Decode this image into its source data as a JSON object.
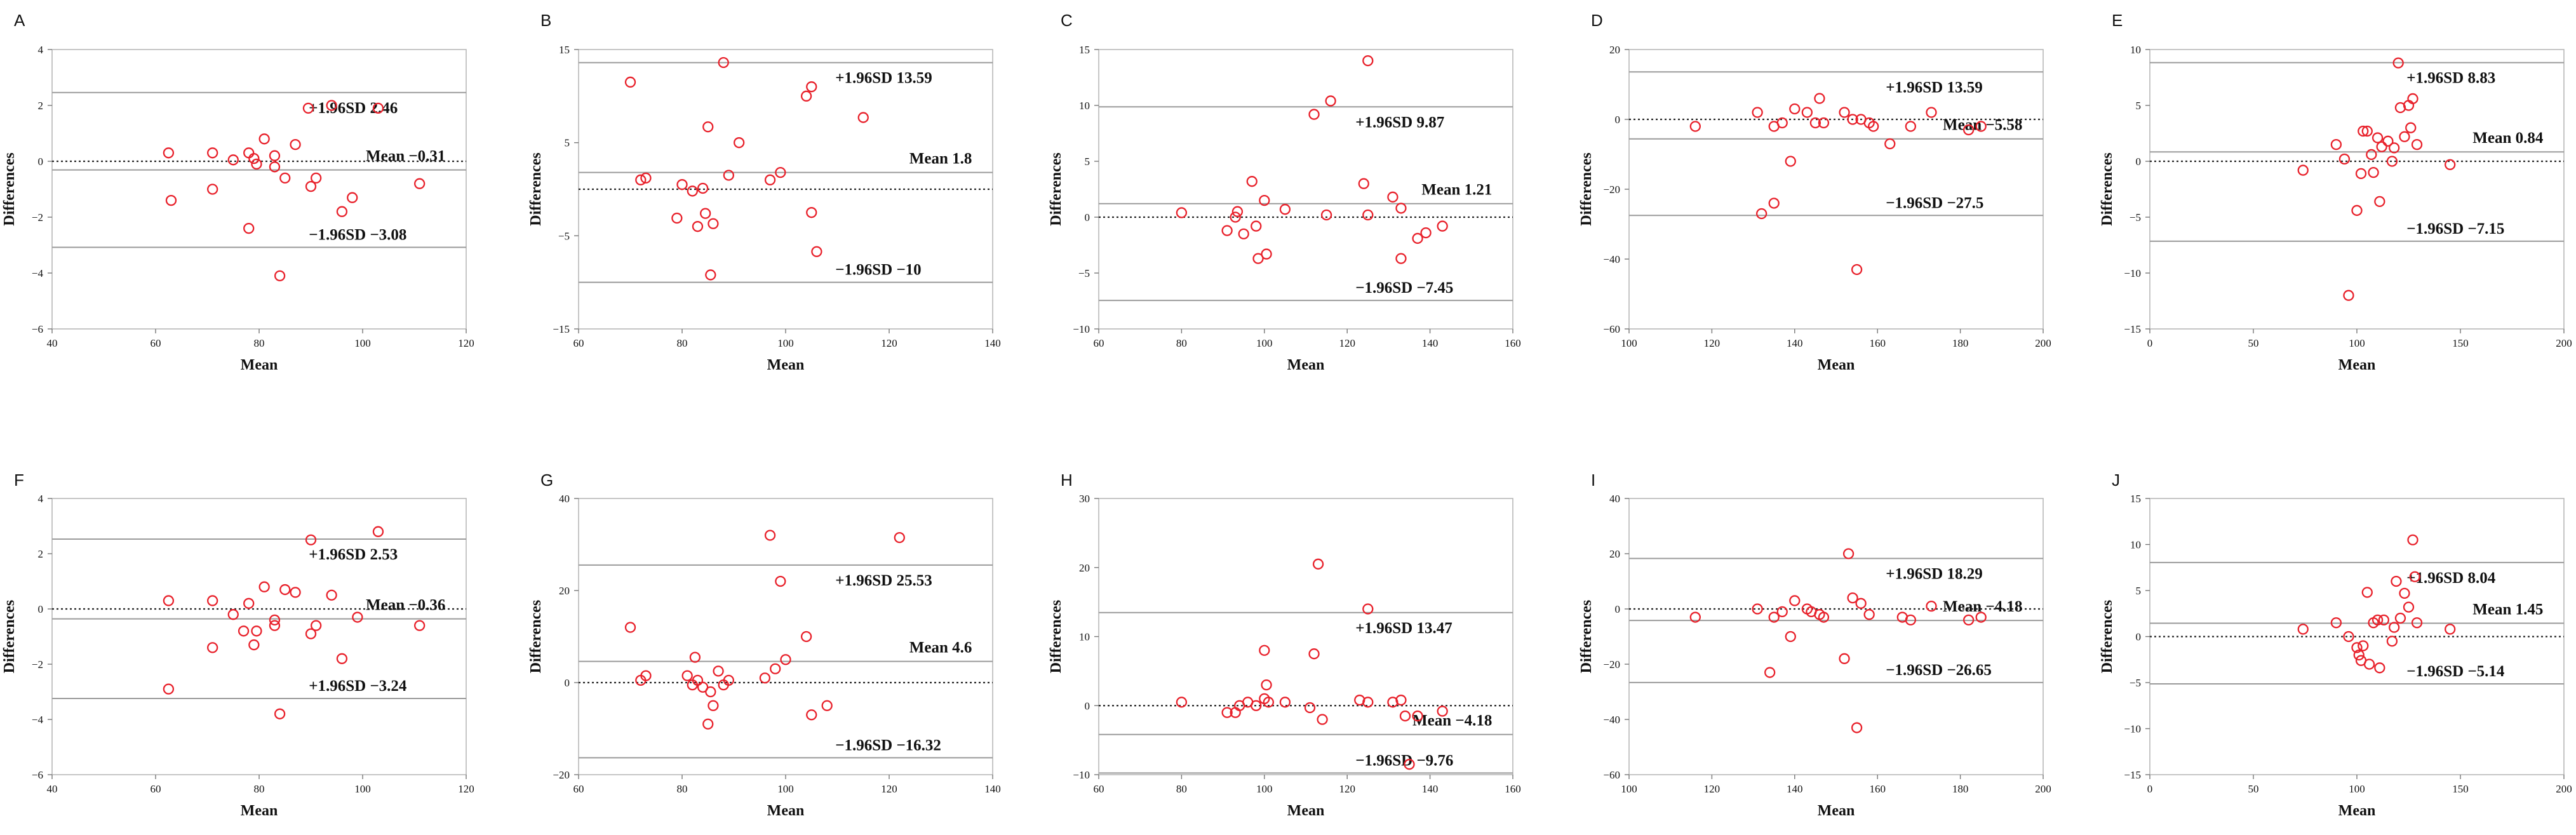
{
  "chart_data": [
    {
      "panel": "A",
      "type": "scatter",
      "xlabel": "Mean",
      "ylabel": "Differences",
      "xlim": [
        40,
        120
      ],
      "ylim": [
        -6,
        4
      ],
      "xticks": [
        40,
        60,
        80,
        100,
        120
      ],
      "yticks": [
        -6,
        -4,
        -2,
        0,
        2,
        4
      ],
      "upper_label": "+1.96SD 2.46",
      "upper": 2.46,
      "mean_label": "Mean -0.31",
      "mean": -0.31,
      "lower_label": "-1.96SD -3.08",
      "lower": -3.08,
      "points": [
        [
          62.5,
          0.3
        ],
        [
          63,
          -1.4
        ],
        [
          71,
          0.3
        ],
        [
          71,
          -1.0
        ],
        [
          75,
          0.05
        ],
        [
          78,
          0.3
        ],
        [
          78,
          -2.4
        ],
        [
          79,
          0.1
        ],
        [
          79.5,
          -0.1
        ],
        [
          81,
          0.8
        ],
        [
          83,
          0.2
        ],
        [
          83,
          -0.2
        ],
        [
          84,
          -4.1
        ],
        [
          85,
          -0.6
        ],
        [
          87,
          0.6
        ],
        [
          89.5,
          1.9
        ],
        [
          90,
          -0.9
        ],
        [
          91,
          -0.6
        ],
        [
          94,
          2.0
        ],
        [
          96,
          -1.8
        ],
        [
          98,
          -1.3
        ],
        [
          103,
          1.9
        ],
        [
          111,
          -0.8
        ]
      ]
    },
    {
      "panel": "B",
      "type": "scatter",
      "xlabel": "Mean",
      "ylabel": "Differences",
      "xlim": [
        60,
        140
      ],
      "ylim": [
        -15,
        15
      ],
      "xticks": [
        60,
        80,
        100,
        120,
        140
      ],
      "yticks": [
        -15,
        -5,
        5,
        15
      ],
      "upper_label": "+1.96SD 13.59",
      "upper": 13.59,
      "mean_label": "Mean 1.8",
      "mean": 1.8,
      "lower_label": "-1.96SD -10",
      "lower": -10,
      "points": [
        [
          70,
          11.5
        ],
        [
          72,
          1.0
        ],
        [
          73,
          1.2
        ],
        [
          79,
          -3.1
        ],
        [
          80,
          0.5
        ],
        [
          82,
          -0.2
        ],
        [
          83,
          -4.0
        ],
        [
          84,
          0.1
        ],
        [
          84.5,
          -2.6
        ],
        [
          85,
          6.7
        ],
        [
          85.5,
          -9.2
        ],
        [
          86,
          -3.7
        ],
        [
          88,
          13.6
        ],
        [
          89,
          1.5
        ],
        [
          91,
          5.0
        ],
        [
          97,
          1.0
        ],
        [
          99,
          1.8
        ],
        [
          104,
          10.0
        ],
        [
          105,
          11.0
        ],
        [
          105,
          -2.5
        ],
        [
          106,
          -6.7
        ],
        [
          115,
          7.7
        ]
      ]
    },
    {
      "panel": "C",
      "type": "scatter",
      "xlabel": "Mean",
      "ylabel": "Differences",
      "xlim": [
        60,
        160
      ],
      "ylim": [
        -10,
        15
      ],
      "xticks": [
        60,
        80,
        100,
        120,
        140,
        160
      ],
      "yticks": [
        -10,
        -5,
        0,
        5,
        10,
        15
      ],
      "upper_label": "+1.96SD 9.87",
      "upper": 9.87,
      "mean_label": "Mean 1.21",
      "mean": 1.21,
      "lower_label": "-1.96SD -7.45",
      "lower": -7.45,
      "points": [
        [
          80,
          0.4
        ],
        [
          91,
          -1.2
        ],
        [
          93,
          0.0
        ],
        [
          93.5,
          0.5
        ],
        [
          95,
          -1.5
        ],
        [
          97,
          3.2
        ],
        [
          98,
          -0.8
        ],
        [
          98.5,
          -3.7
        ],
        [
          100,
          1.5
        ],
        [
          100.5,
          -3.3
        ],
        [
          105,
          0.7
        ],
        [
          112,
          9.2
        ],
        [
          115,
          0.2
        ],
        [
          116,
          10.4
        ],
        [
          124,
          3.0
        ],
        [
          125,
          0.2
        ],
        [
          125,
          14.0
        ],
        [
          131,
          1.8
        ],
        [
          133,
          0.8
        ],
        [
          133,
          -3.7
        ],
        [
          137,
          -1.9
        ],
        [
          139,
          -1.4
        ],
        [
          143,
          -0.8
        ]
      ]
    },
    {
      "panel": "D",
      "type": "scatter",
      "xlabel": "Mean",
      "ylabel": "Differences",
      "xlim": [
        100,
        200
      ],
      "ylim": [
        -60,
        20
      ],
      "xticks": [
        100,
        120,
        140,
        160,
        180,
        200
      ],
      "yticks": [
        -60,
        -40,
        -20,
        0,
        20
      ],
      "upper_label": "+1.96SD 13.59",
      "upper": 13.59,
      "mean_label": "Mean -5.58",
      "mean": -5.58,
      "lower_label": "-1.96SD -27.5",
      "lower": -27.5,
      "points": [
        [
          116,
          -2.0
        ],
        [
          131,
          2.0
        ],
        [
          132,
          -27.0
        ],
        [
          135,
          -24.0
        ],
        [
          135,
          -2.0
        ],
        [
          137,
          -1.0
        ],
        [
          139,
          -12.0
        ],
        [
          140,
          3.0
        ],
        [
          143,
          2.0
        ],
        [
          145,
          -1.0
        ],
        [
          146,
          6.0
        ],
        [
          147,
          -1.0
        ],
        [
          152,
          2.0
        ],
        [
          154,
          0.0
        ],
        [
          155,
          -43.0
        ],
        [
          156,
          0.0
        ],
        [
          158,
          -1.0
        ],
        [
          159,
          -2.0
        ],
        [
          163,
          -7.0
        ],
        [
          168,
          -2.0
        ],
        [
          173,
          2.0
        ],
        [
          182,
          -3.0
        ],
        [
          185,
          -2.0
        ]
      ]
    },
    {
      "panel": "E",
      "type": "scatter",
      "xlabel": "Mean",
      "ylabel": "Differences",
      "xlim": [
        0,
        200
      ],
      "ylim": [
        -15,
        10
      ],
      "xticks": [
        0,
        50,
        100,
        150,
        200
      ],
      "yticks": [
        -15,
        -10,
        -5,
        0,
        5,
        10
      ],
      "upper_label": "+1.96SD 8.83",
      "upper": 8.83,
      "mean_label": "Mean 0.84",
      "mean": 0.84,
      "lower_label": "-1.96SD -7.15",
      "lower": -7.15,
      "points": [
        [
          74,
          -0.8
        ],
        [
          90,
          1.5
        ],
        [
          94,
          0.2
        ],
        [
          96,
          -12.0
        ],
        [
          100,
          -4.4
        ],
        [
          102,
          -1.1
        ],
        [
          103,
          2.7
        ],
        [
          105,
          2.7
        ],
        [
          107,
          0.6
        ],
        [
          108,
          -1.0
        ],
        [
          110,
          2.1
        ],
        [
          111,
          -3.6
        ],
        [
          112,
          1.3
        ],
        [
          115,
          1.8
        ],
        [
          117,
          0.0
        ],
        [
          118,
          1.2
        ],
        [
          120,
          8.8
        ],
        [
          121,
          4.8
        ],
        [
          123,
          2.2
        ],
        [
          125,
          5.0
        ],
        [
          126,
          3.0
        ],
        [
          127,
          5.6
        ],
        [
          129,
          1.5
        ],
        [
          145,
          -0.3
        ]
      ]
    },
    {
      "panel": "F",
      "type": "scatter",
      "xlabel": "Mean",
      "ylabel": "Differences",
      "xlim": [
        40,
        120
      ],
      "ylim": [
        -6,
        4
      ],
      "xticks": [
        40,
        60,
        80,
        100,
        120
      ],
      "yticks": [
        -6,
        -4,
        -2,
        0,
        2,
        4
      ],
      "upper_label": "+1.96SD 2.53",
      "upper": 2.53,
      "mean_label": "Mean -0.36",
      "mean": -0.36,
      "lower_label": "+1.96SD -3.24",
      "lower": -3.24,
      "points": [
        [
          62.5,
          0.3
        ],
        [
          62.5,
          -2.9
        ],
        [
          71,
          0.3
        ],
        [
          71,
          -1.4
        ],
        [
          75,
          -0.2
        ],
        [
          77,
          -0.8
        ],
        [
          78,
          0.2
        ],
        [
          79,
          -1.3
        ],
        [
          79.5,
          -0.8
        ],
        [
          81,
          0.8
        ],
        [
          83,
          -0.4
        ],
        [
          83,
          -0.6
        ],
        [
          84,
          -3.8
        ],
        [
          85,
          0.7
        ],
        [
          87,
          0.6
        ],
        [
          90,
          2.5
        ],
        [
          90,
          -0.9
        ],
        [
          91,
          -0.6
        ],
        [
          94,
          0.5
        ],
        [
          96,
          -1.8
        ],
        [
          99,
          -0.3
        ],
        [
          103,
          2.8
        ],
        [
          111,
          -0.6
        ]
      ]
    },
    {
      "panel": "G",
      "type": "scatter",
      "xlabel": "Mean",
      "ylabel": "Differences",
      "xlim": [
        60,
        140
      ],
      "ylim": [
        -20,
        40
      ],
      "xticks": [
        60,
        80,
        100,
        120,
        140
      ],
      "yticks": [
        -20,
        0,
        20,
        40
      ],
      "upper_label": "+1.96SD 25.53",
      "upper": 25.53,
      "mean_label": "Mean 4.6",
      "mean": 4.6,
      "lower_label": "-1.96SD -16.32",
      "lower": -16.32,
      "points": [
        [
          70,
          12.0
        ],
        [
          72,
          0.5
        ],
        [
          73,
          1.5
        ],
        [
          81,
          1.5
        ],
        [
          82,
          -0.5
        ],
        [
          82.5,
          5.5
        ],
        [
          83,
          0.5
        ],
        [
          84,
          -1.0
        ],
        [
          85,
          -9.0
        ],
        [
          85.5,
          -2.0
        ],
        [
          86,
          -5.0
        ],
        [
          87,
          2.5
        ],
        [
          88,
          -0.5
        ],
        [
          89,
          0.5
        ],
        [
          96,
          1.0
        ],
        [
          97,
          32.0
        ],
        [
          98,
          3.0
        ],
        [
          99,
          22.0
        ],
        [
          100,
          5.0
        ],
        [
          104,
          10.0
        ],
        [
          105,
          -7.0
        ],
        [
          108,
          -5.0
        ],
        [
          122,
          31.5
        ]
      ]
    },
    {
      "panel": "H",
      "type": "scatter",
      "xlabel": "Mean",
      "ylabel": "Differences",
      "xlim": [
        60,
        160
      ],
      "ylim": [
        -10,
        30
      ],
      "xticks": [
        60,
        80,
        100,
        120,
        140,
        160
      ],
      "yticks": [
        -10,
        0,
        10,
        20,
        30
      ],
      "upper_label": "+1.96SD 13.47",
      "upper": 13.47,
      "mean_label": "Mean -4.18",
      "mean": -4.18,
      "lower_label": "-1.96SD -9.76",
      "lower": -9.76,
      "points": [
        [
          80,
          0.5
        ],
        [
          91,
          -1.0
        ],
        [
          93,
          -1.0
        ],
        [
          94,
          0.0
        ],
        [
          96,
          0.5
        ],
        [
          98,
          0.0
        ],
        [
          100,
          8.0
        ],
        [
          100,
          1.0
        ],
        [
          100.5,
          3.0
        ],
        [
          101,
          0.5
        ],
        [
          105,
          0.5
        ],
        [
          111,
          -0.3
        ],
        [
          112,
          7.5
        ],
        [
          113,
          20.5
        ],
        [
          114,
          -2.0
        ],
        [
          123,
          0.8
        ],
        [
          125,
          0.5
        ],
        [
          125,
          14.0
        ],
        [
          131,
          0.5
        ],
        [
          133,
          0.8
        ],
        [
          134,
          -1.5
        ],
        [
          135,
          -8.5
        ],
        [
          137,
          -1.5
        ],
        [
          143,
          -0.8
        ]
      ]
    },
    {
      "panel": "I",
      "type": "scatter",
      "xlabel": "Mean",
      "ylabel": "Differences",
      "xlim": [
        100,
        200
      ],
      "ylim": [
        -60,
        40
      ],
      "xticks": [
        100,
        120,
        140,
        160,
        180,
        200
      ],
      "yticks": [
        -60,
        -40,
        -20,
        0,
        20,
        40
      ],
      "upper_label": "+1.96SD 18.29",
      "upper": 18.29,
      "mean_label": "Mean -4.18",
      "mean": -4.18,
      "lower_label": "-1.96SD -26.65",
      "lower": -26.65,
      "points": [
        [
          116,
          -3.0
        ],
        [
          131,
          0.0
        ],
        [
          134,
          -23.0
        ],
        [
          135,
          -3.0
        ],
        [
          137,
          -1.0
        ],
        [
          139,
          -10.0
        ],
        [
          140,
          3.0
        ],
        [
          143,
          0.0
        ],
        [
          144,
          -1.0
        ],
        [
          146,
          -2.0
        ],
        [
          147,
          -3.0
        ],
        [
          152,
          -18.0
        ],
        [
          153,
          20.0
        ],
        [
          154,
          4.0
        ],
        [
          155,
          -43.0
        ],
        [
          156,
          2.0
        ],
        [
          158,
          -2.0
        ],
        [
          166,
          -3.0
        ],
        [
          168,
          -4.0
        ],
        [
          173,
          1.0
        ],
        [
          182,
          -4.0
        ],
        [
          185,
          -3.0
        ]
      ]
    },
    {
      "panel": "J",
      "type": "scatter",
      "xlabel": "Mean",
      "ylabel": "Differences",
      "xlim": [
        0,
        200
      ],
      "ylim": [
        -15,
        15
      ],
      "xticks": [
        0,
        50,
        100,
        150,
        200
      ],
      "yticks": [
        -15,
        -10,
        -5,
        0,
        5,
        10,
        15
      ],
      "upper_label": "+1.96SD 8.04",
      "upper": 8.04,
      "mean_label": "Mean 1.45",
      "mean": 1.45,
      "lower_label": "-1.96SD -5.14",
      "lower": -5.14,
      "points": [
        [
          74,
          0.8
        ],
        [
          90,
          1.5
        ],
        [
          96,
          0.0
        ],
        [
          100,
          -1.2
        ],
        [
          101,
          -2.0
        ],
        [
          102,
          -2.6
        ],
        [
          103,
          -1.0
        ],
        [
          105,
          4.8
        ],
        [
          106,
          -3.0
        ],
        [
          108,
          1.5
        ],
        [
          110,
          1.8
        ],
        [
          111,
          -3.4
        ],
        [
          113,
          1.8
        ],
        [
          117,
          -0.5
        ],
        [
          118,
          1.0
        ],
        [
          119,
          6.0
        ],
        [
          121,
          2.0
        ],
        [
          123,
          4.7
        ],
        [
          125,
          3.2
        ],
        [
          127,
          10.5
        ],
        [
          128,
          6.5
        ],
        [
          129,
          1.5
        ],
        [
          145,
          0.8
        ]
      ]
    }
  ]
}
